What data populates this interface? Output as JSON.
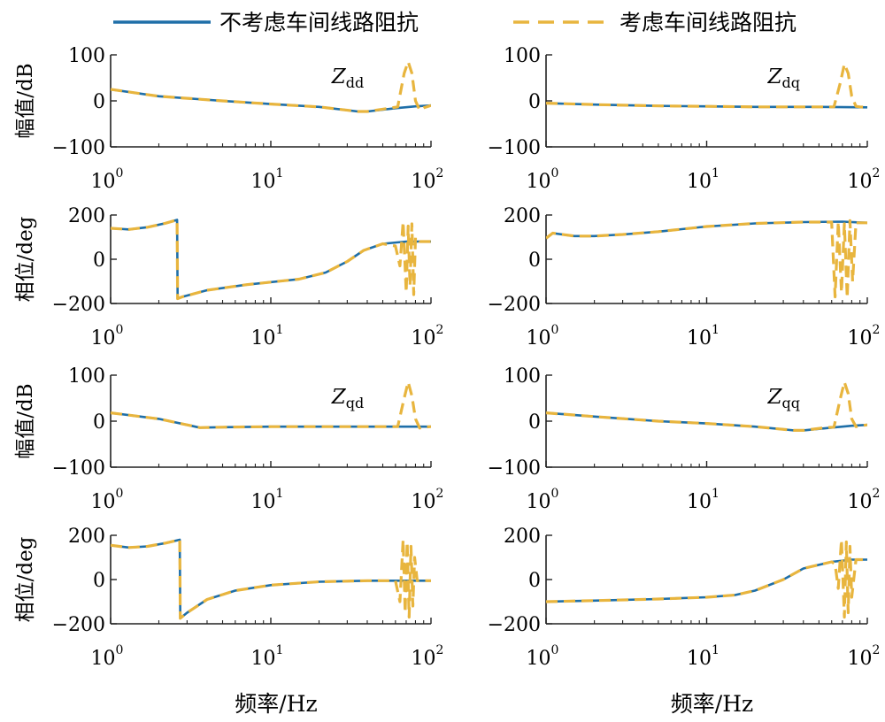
{
  "legend": {
    "entries": [
      {
        "label": "不考虑车间线路阻抗",
        "color": "#1f6fa8",
        "style": "solid"
      },
      {
        "label": "考虑车间线路阻抗",
        "color": "#e8b53e",
        "style": "dashed"
      }
    ]
  },
  "colors": {
    "series_without": "#1f6fa8",
    "series_with": "#e8b53e",
    "axis": "#222222"
  },
  "chart_data": [
    {
      "id": "zdd-mag",
      "type": "line",
      "annotation": {
        "main": "Z",
        "sub": "dd"
      },
      "ylabel": "幅值/dB",
      "xlabel": "",
      "xscale": "log",
      "xlim": [
        1,
        100
      ],
      "ylim": [
        -100,
        100
      ],
      "yticks": [
        {
          "v": 100,
          "label": "100"
        },
        {
          "v": 0,
          "label": "0"
        },
        {
          "v": -100,
          "label": "−100"
        }
      ],
      "xticks": [
        {
          "v": 1,
          "base": "10",
          "exp": "0"
        },
        {
          "v": 10,
          "base": "10",
          "exp": "1"
        },
        {
          "v": 100,
          "base": "10",
          "exp": "2"
        }
      ],
      "series": [
        {
          "name": "不考虑车间线路阻抗",
          "x": [
            1,
            2,
            5,
            10,
            20,
            35,
            40,
            60,
            80,
            100
          ],
          "y": [
            25,
            10,
            0,
            -7,
            -13,
            -23,
            -23,
            -16,
            -12,
            -10
          ]
        },
        {
          "name": "考虑车间线路阻抗",
          "x": [
            1,
            2,
            5,
            10,
            20,
            35,
            40,
            55,
            62,
            68,
            72,
            76,
            80,
            85,
            90,
            100
          ],
          "y": [
            25,
            10,
            0,
            -7,
            -13,
            -23,
            -23,
            -16,
            -13,
            60,
            85,
            60,
            0,
            -20,
            -15,
            -10
          ]
        }
      ]
    },
    {
      "id": "zdq-mag",
      "type": "line",
      "annotation": {
        "main": "Z",
        "sub": "dq"
      },
      "ylabel": "",
      "xlabel": "",
      "xscale": "log",
      "xlim": [
        1,
        100
      ],
      "ylim": [
        -100,
        100
      ],
      "yticks": [
        {
          "v": 100,
          "label": "100"
        },
        {
          "v": 0,
          "label": "0"
        },
        {
          "v": -100,
          "label": "−100"
        }
      ],
      "xticks": [
        {
          "v": 1,
          "base": "10",
          "exp": "0"
        },
        {
          "v": 10,
          "base": "10",
          "exp": "1"
        },
        {
          "v": 100,
          "base": "10",
          "exp": "2"
        }
      ],
      "series": [
        {
          "name": "不考虑车间线路阻抗",
          "x": [
            1,
            2,
            5,
            10,
            20,
            50,
            100
          ],
          "y": [
            -5,
            -8,
            -11,
            -12,
            -13,
            -13,
            -14
          ]
        },
        {
          "name": "考虑车间线路阻抗",
          "x": [
            1,
            2,
            5,
            10,
            20,
            50,
            62,
            68,
            72,
            76,
            80,
            85,
            90,
            100
          ],
          "y": [
            -5,
            -8,
            -11,
            -12,
            -13,
            -13,
            -13,
            40,
            80,
            60,
            10,
            -12,
            -13,
            -14
          ]
        }
      ]
    },
    {
      "id": "zdd-phase",
      "type": "line",
      "annotation": null,
      "ylabel": "相位/deg",
      "xlabel": "",
      "xscale": "log",
      "xlim": [
        1,
        100
      ],
      "ylim": [
        -200,
        200
      ],
      "yticks": [
        {
          "v": 200,
          "label": "200"
        },
        {
          "v": 0,
          "label": "0"
        },
        {
          "v": -200,
          "label": "−200"
        }
      ],
      "xticks": [
        {
          "v": 1,
          "base": "10",
          "exp": "0"
        },
        {
          "v": 10,
          "base": "10",
          "exp": "1"
        },
        {
          "v": 100,
          "base": "10",
          "exp": "2"
        }
      ],
      "series": [
        {
          "name": "不考虑车间线路阻抗",
          "x": [
            1,
            1.3,
            1.7,
            2.2,
            2.6,
            2.62,
            2.8,
            4,
            7,
            15,
            22,
            30,
            38,
            50,
            70,
            100
          ],
          "y": [
            140,
            135,
            145,
            163,
            178,
            -178,
            -170,
            -140,
            -115,
            -90,
            -60,
            -10,
            40,
            70,
            80,
            80
          ]
        },
        {
          "name": "考虑车间线路阻抗",
          "x": [
            1,
            1.3,
            1.7,
            2.2,
            2.6,
            2.62,
            2.8,
            4,
            7,
            15,
            22,
            30,
            38,
            50,
            60,
            64,
            67,
            70,
            72,
            74,
            76,
            78,
            80,
            85,
            100
          ],
          "y": [
            140,
            135,
            145,
            163,
            178,
            -178,
            -170,
            -140,
            -115,
            -90,
            -60,
            -10,
            40,
            70,
            60,
            -30,
            170,
            -150,
            150,
            -120,
            160,
            -160,
            100,
            80,
            80
          ]
        }
      ]
    },
    {
      "id": "zdq-phase",
      "type": "line",
      "annotation": null,
      "ylabel": "",
      "xlabel": "",
      "xscale": "log",
      "xlim": [
        1,
        100
      ],
      "ylim": [
        -200,
        200
      ],
      "yticks": [
        {
          "v": 200,
          "label": "200"
        },
        {
          "v": 0,
          "label": "0"
        },
        {
          "v": -200,
          "label": "−200"
        }
      ],
      "xticks": [
        {
          "v": 1,
          "base": "10",
          "exp": "0"
        },
        {
          "v": 10,
          "base": "10",
          "exp": "1"
        },
        {
          "v": 100,
          "base": "10",
          "exp": "2"
        }
      ],
      "series": [
        {
          "name": "不考虑车间线路阻抗",
          "x": [
            1,
            1.1,
            1.5,
            2,
            3,
            5,
            10,
            20,
            40,
            70,
            100
          ],
          "y": [
            95,
            118,
            105,
            105,
            112,
            125,
            148,
            162,
            168,
            170,
            165
          ]
        },
        {
          "name": "考虑车间线路阻抗",
          "x": [
            1,
            1.1,
            1.5,
            2,
            3,
            5,
            10,
            20,
            40,
            60,
            63,
            66,
            69,
            72,
            75,
            78,
            81,
            85,
            100
          ],
          "y": [
            95,
            118,
            105,
            105,
            112,
            125,
            148,
            162,
            168,
            168,
            -170,
            170,
            -150,
            160,
            -175,
            175,
            -100,
            165,
            165
          ]
        }
      ]
    },
    {
      "id": "zqd-mag",
      "type": "line",
      "annotation": {
        "main": "Z",
        "sub": "qd"
      },
      "ylabel": "幅值/dB",
      "xlabel": "",
      "xscale": "log",
      "xlim": [
        1,
        100
      ],
      "ylim": [
        -100,
        100
      ],
      "yticks": [
        {
          "v": 100,
          "label": "100"
        },
        {
          "v": 0,
          "label": "0"
        },
        {
          "v": -100,
          "label": "−100"
        }
      ],
      "xticks": [
        {
          "v": 1,
          "base": "10",
          "exp": "0"
        },
        {
          "v": 10,
          "base": "10",
          "exp": "1"
        },
        {
          "v": 100,
          "base": "10",
          "exp": "2"
        }
      ],
      "series": [
        {
          "name": "不考虑车间线路阻抗",
          "x": [
            1,
            2,
            3,
            3.6,
            5,
            10,
            20,
            50,
            100
          ],
          "y": [
            18,
            5,
            -8,
            -14,
            -13,
            -12,
            -12,
            -12,
            -12
          ]
        },
        {
          "name": "考虑车间线路阻抗",
          "x": [
            1,
            2,
            3,
            3.6,
            5,
            10,
            20,
            50,
            62,
            68,
            72,
            76,
            80,
            85,
            90,
            100
          ],
          "y": [
            18,
            5,
            -8,
            -14,
            -13,
            -12,
            -12,
            -12,
            -12,
            50,
            85,
            55,
            5,
            -15,
            -13,
            -12
          ]
        }
      ]
    },
    {
      "id": "zqq-mag",
      "type": "line",
      "annotation": {
        "main": "Z",
        "sub": "qq"
      },
      "ylabel": "",
      "xlabel": "",
      "xscale": "log",
      "xlim": [
        1,
        100
      ],
      "ylim": [
        -100,
        100
      ],
      "yticks": [
        {
          "v": 100,
          "label": "100"
        },
        {
          "v": 0,
          "label": "0"
        },
        {
          "v": -100,
          "label": "−100"
        }
      ],
      "xticks": [
        {
          "v": 1,
          "base": "10",
          "exp": "0"
        },
        {
          "v": 10,
          "base": "10",
          "exp": "1"
        },
        {
          "v": 100,
          "base": "10",
          "exp": "2"
        }
      ],
      "series": [
        {
          "name": "不考虑车间线路阻抗",
          "x": [
            1,
            2,
            5,
            10,
            20,
            35,
            40,
            60,
            80,
            100
          ],
          "y": [
            18,
            10,
            0,
            -5,
            -12,
            -20,
            -20,
            -14,
            -10,
            -8
          ]
        },
        {
          "name": "考虑车间线路阻抗",
          "x": [
            1,
            2,
            5,
            10,
            20,
            35,
            40,
            55,
            62,
            68,
            72,
            76,
            80,
            85,
            90,
            100
          ],
          "y": [
            18,
            10,
            0,
            -5,
            -12,
            -20,
            -20,
            -14,
            -13,
            50,
            85,
            60,
            5,
            -12,
            -10,
            -8
          ]
        }
      ]
    },
    {
      "id": "zqd-phase",
      "type": "line",
      "annotation": null,
      "ylabel": "相位/deg",
      "xlabel": "频率/Hz",
      "xscale": "log",
      "xlim": [
        1,
        100
      ],
      "ylim": [
        -200,
        200
      ],
      "yticks": [
        {
          "v": 200,
          "label": "200"
        },
        {
          "v": 0,
          "label": "0"
        },
        {
          "v": -200,
          "label": "−200"
        }
      ],
      "xticks": [
        {
          "v": 1,
          "base": "10",
          "exp": "0"
        },
        {
          "v": 10,
          "base": "10",
          "exp": "1"
        },
        {
          "v": 100,
          "base": "10",
          "exp": "2"
        }
      ],
      "series": [
        {
          "name": "不考虑车间线路阻抗",
          "x": [
            1,
            1.3,
            1.7,
            2.2,
            2.7,
            2.72,
            3,
            4,
            6,
            10,
            20,
            40,
            70,
            100
          ],
          "y": [
            155,
            145,
            150,
            165,
            180,
            -175,
            -150,
            -90,
            -50,
            -25,
            -10,
            -5,
            -5,
            -5
          ]
        },
        {
          "name": "考虑车间线路阻抗",
          "x": [
            1,
            1.3,
            1.7,
            2.2,
            2.7,
            2.72,
            3,
            4,
            6,
            10,
            20,
            40,
            60,
            64,
            67,
            69,
            71,
            73,
            75,
            77,
            79,
            82,
            100
          ],
          "y": [
            155,
            145,
            150,
            165,
            180,
            -175,
            -150,
            -90,
            -50,
            -25,
            -10,
            -5,
            -5,
            -100,
            180,
            -150,
            170,
            -170,
            150,
            -120,
            100,
            -5,
            -5
          ]
        }
      ]
    },
    {
      "id": "zqq-phase",
      "type": "line",
      "annotation": null,
      "ylabel": "",
      "xlabel": "频率/Hz",
      "xscale": "log",
      "xlim": [
        1,
        100
      ],
      "ylim": [
        -200,
        200
      ],
      "yticks": [
        {
          "v": 200,
          "label": "200"
        },
        {
          "v": 0,
          "label": "0"
        },
        {
          "v": -200,
          "label": "−200"
        }
      ],
      "xticks": [
        {
          "v": 1,
          "base": "10",
          "exp": "0"
        },
        {
          "v": 10,
          "base": "10",
          "exp": "1"
        },
        {
          "v": 100,
          "base": "10",
          "exp": "2"
        }
      ],
      "series": [
        {
          "name": "不考虑车间线路阻抗",
          "x": [
            1,
            2,
            5,
            10,
            15,
            20,
            30,
            40,
            60,
            80,
            100
          ],
          "y": [
            -100,
            -95,
            -88,
            -80,
            -70,
            -50,
            0,
            50,
            80,
            90,
            90
          ]
        },
        {
          "name": "考虑车间线路阻抗",
          "x": [
            1,
            2,
            5,
            10,
            15,
            20,
            30,
            40,
            60,
            63,
            66,
            69,
            72,
            74,
            76,
            78,
            80,
            85,
            100
          ],
          "y": [
            -100,
            -95,
            -88,
            -80,
            -70,
            -50,
            0,
            50,
            80,
            70,
            -40,
            180,
            -170,
            170,
            -150,
            150,
            -80,
            90,
            90
          ]
        }
      ]
    }
  ]
}
